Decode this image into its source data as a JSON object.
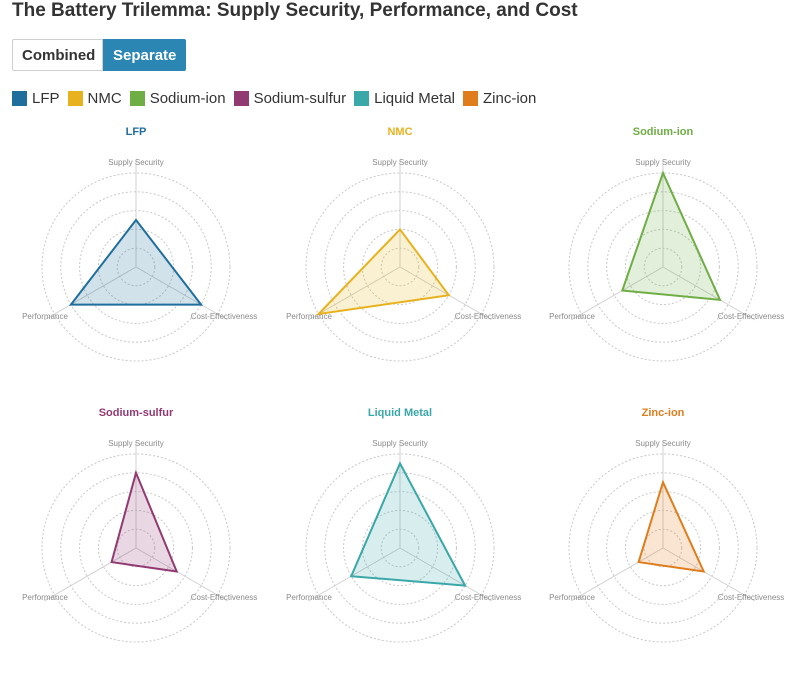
{
  "title": "The Battery Trilemma: Supply Security, Performance, and Cost",
  "toggle": {
    "combined_label": "Combined",
    "separate_label": "Separate",
    "selected": "Separate"
  },
  "legend": [
    {
      "name": "LFP",
      "color": "#1f6e9c"
    },
    {
      "name": "NMC",
      "color": "#e8b21e"
    },
    {
      "name": "Sodium-ion",
      "color": "#6eae45"
    },
    {
      "name": "Sodium-sulfur",
      "color": "#913a72"
    },
    {
      "name": "Liquid Metal",
      "color": "#3aa7a8"
    },
    {
      "name": "Zinc-ion",
      "color": "#df7d1c"
    }
  ],
  "chart_data": {
    "type": "radar",
    "axes": [
      "Supply Security",
      "Performance",
      "Cost-Effectiveness"
    ],
    "range": [
      0,
      10
    ],
    "rings": 5,
    "grid": "dotted",
    "layout": "small-multiples",
    "series": [
      {
        "name": "LFP",
        "color": "#1f6e9c",
        "values": [
          5,
          8,
          8
        ]
      },
      {
        "name": "NMC",
        "color": "#e8b21e",
        "values": [
          4,
          10,
          6
        ]
      },
      {
        "name": "Sodium-ion",
        "color": "#6eae45",
        "values": [
          10,
          5,
          7
        ]
      },
      {
        "name": "Sodium-sulfur",
        "color": "#913a72",
        "values": [
          8,
          3,
          5
        ]
      },
      {
        "name": "Liquid Metal",
        "color": "#3aa7a8",
        "values": [
          9,
          6,
          8
        ]
      },
      {
        "name": "Zinc-ion",
        "color": "#df7d1c",
        "values": [
          7,
          3,
          5
        ]
      }
    ]
  }
}
